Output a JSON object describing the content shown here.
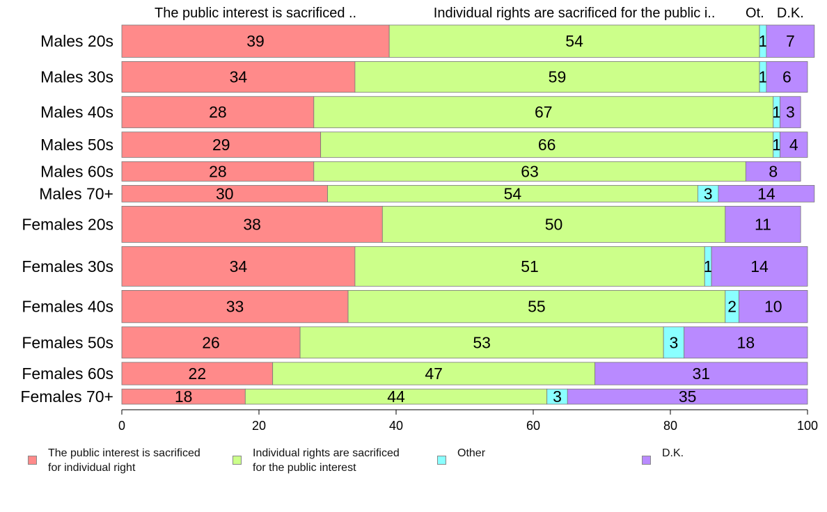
{
  "chart_data": {
    "type": "bar",
    "orientation": "horizontal",
    "stacked": true,
    "column_headers": [
      "The public interest is sacrificed ..",
      "Individual rights are sacrificed for the public i..",
      "Ot.",
      "D.K."
    ],
    "categories": [
      "Males 20s",
      "Males 30s",
      "Males 40s",
      "Males 50s",
      "Males 60s",
      "Males 70+",
      "Females 20s",
      "Females 30s",
      "Females 40s",
      "Females 50s",
      "Females 60s",
      "Females 70+"
    ],
    "series": [
      {
        "name": "The public interest is sacrificed\nfor individual right",
        "color": "#ff8a8a",
        "values": [
          39,
          34,
          28,
          29,
          28,
          30,
          38,
          34,
          33,
          26,
          22,
          18
        ]
      },
      {
        "name": "Individual rights are sacrificed\nfor the public interest",
        "color": "#ccff8a",
        "values": [
          54,
          59,
          67,
          66,
          63,
          54,
          50,
          51,
          55,
          53,
          47,
          44
        ]
      },
      {
        "name": "Other",
        "color": "#8affff",
        "values": [
          1,
          1,
          1,
          1,
          0,
          3,
          0,
          1,
          2,
          3,
          0,
          3
        ]
      },
      {
        "name": "D.K.",
        "color": "#b98aff",
        "values": [
          7,
          6,
          3,
          4,
          8,
          14,
          11,
          14,
          10,
          18,
          31,
          35
        ]
      }
    ],
    "row_weights": [
      66,
      63,
      64,
      52,
      40,
      34,
      74,
      81,
      66,
      64,
      46,
      31
    ],
    "xlim": [
      0,
      100
    ],
    "xticks": [
      0,
      20,
      40,
      60,
      80,
      100
    ],
    "xlabel": "",
    "ylabel": "",
    "grid": false,
    "legend_position": "bottom"
  }
}
